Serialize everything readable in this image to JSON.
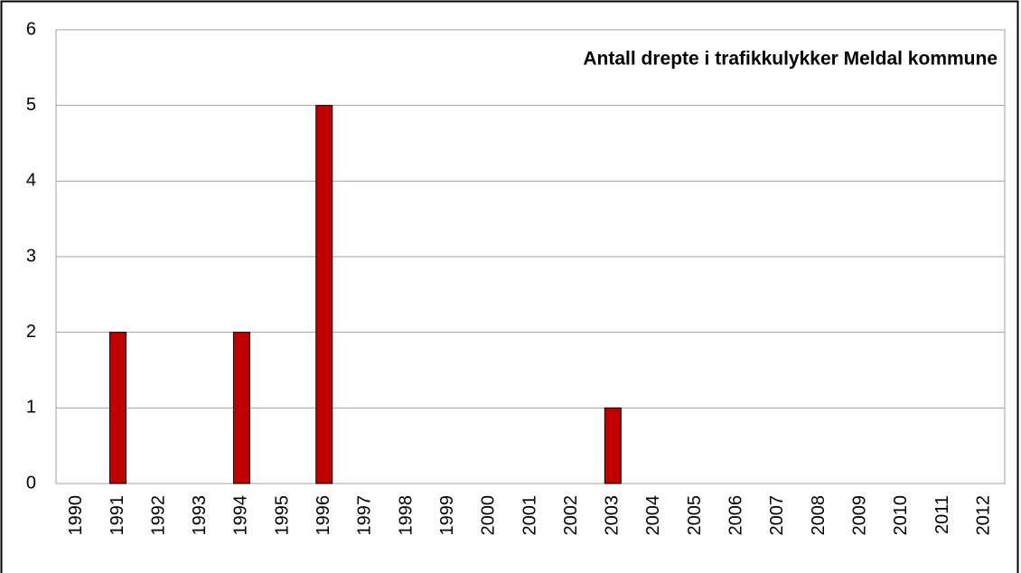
{
  "chart_data": {
    "type": "bar",
    "title": "Antall  drepte i trafikkulykker   Meldal  kommune",
    "categories": [
      "1990",
      "1991",
      "1992",
      "1993",
      "1994",
      "1995",
      "1996",
      "1997",
      "1998",
      "1999",
      "2000",
      "2001",
      "2002",
      "2003",
      "2004",
      "2005",
      "2006",
      "2007",
      "2008",
      "2009",
      "2010",
      "2011",
      "2012"
    ],
    "values": [
      0,
      2,
      0,
      0,
      2,
      0,
      5,
      0,
      0,
      0,
      0,
      0,
      0,
      1,
      0,
      0,
      0,
      0,
      0,
      0,
      0,
      0,
      0
    ],
    "color": "#c00000",
    "ylim": [
      0,
      6
    ],
    "yticks": [
      0,
      1,
      2,
      3,
      4,
      5,
      6
    ],
    "grid": true
  }
}
